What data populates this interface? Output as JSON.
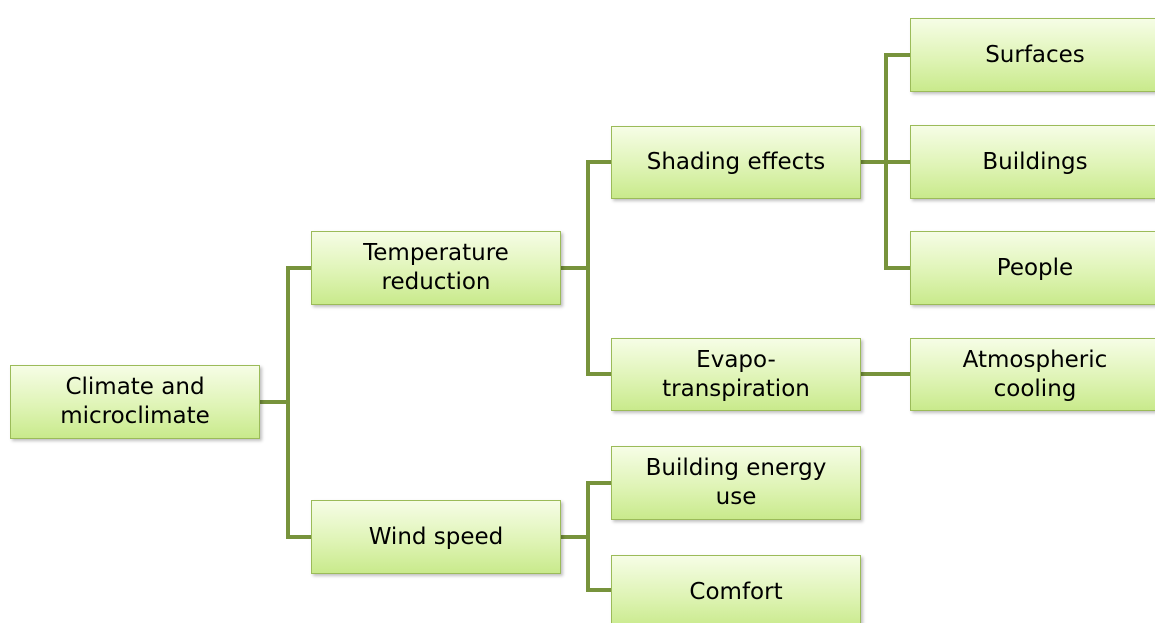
{
  "nodes": [
    {
      "label": "Climate and microclimate"
    },
    {
      "label": "Temperature reduction"
    },
    {
      "label": "Wind speed"
    },
    {
      "label": "Shading effects"
    },
    {
      "label": "Evapo-transpiration"
    },
    {
      "label": "Building energy use"
    },
    {
      "label": "Comfort"
    },
    {
      "label": "Surfaces"
    },
    {
      "label": "Buildings"
    },
    {
      "label": "People"
    },
    {
      "label": "Atmospheric cooling"
    }
  ]
}
